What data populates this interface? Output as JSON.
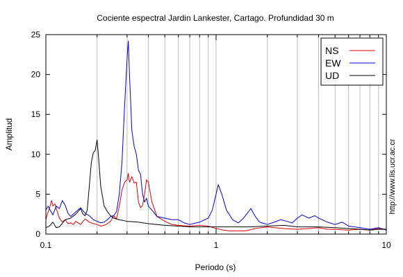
{
  "chart_data": {
    "type": "line",
    "title": "Cociente espectral Jardin Lankester, Cartago. Profundidad 30 m",
    "xlabel": "Periodo (s)",
    "ylabel": "Amplitud",
    "xscale": "log",
    "xlim": [
      0.1,
      10
    ],
    "ylim": [
      0,
      25
    ],
    "xticks": [
      "0.1",
      "1",
      "10"
    ],
    "yticks": [
      "0",
      "5",
      "10",
      "15",
      "20",
      "25"
    ],
    "grid": "vertical-log-minor",
    "legend_position": "top-right",
    "side_label": "http://www.lis.ucr.ac.cr",
    "series": [
      {
        "name": "NS",
        "color": "#e00000",
        "points": [
          [
            0.1,
            1.8
          ],
          [
            0.102,
            2.5
          ],
          [
            0.105,
            3.2
          ],
          [
            0.108,
            4.2
          ],
          [
            0.11,
            3.5
          ],
          [
            0.113,
            3.8
          ],
          [
            0.116,
            3.0
          ],
          [
            0.12,
            2.0
          ],
          [
            0.125,
            1.5
          ],
          [
            0.13,
            1.8
          ],
          [
            0.135,
            1.3
          ],
          [
            0.14,
            1.4
          ],
          [
            0.145,
            1.2
          ],
          [
            0.15,
            1.6
          ],
          [
            0.16,
            1.2
          ],
          [
            0.17,
            1.9
          ],
          [
            0.18,
            1.5
          ],
          [
            0.19,
            1.3
          ],
          [
            0.2,
            1.2
          ],
          [
            0.21,
            1.0
          ],
          [
            0.22,
            1.1
          ],
          [
            0.23,
            1.3
          ],
          [
            0.24,
            1.6
          ],
          [
            0.25,
            2.3
          ],
          [
            0.26,
            1.9
          ],
          [
            0.27,
            3.5
          ],
          [
            0.28,
            5.5
          ],
          [
            0.29,
            6.5
          ],
          [
            0.3,
            6.8
          ],
          [
            0.305,
            7.6
          ],
          [
            0.31,
            6.5
          ],
          [
            0.32,
            7.2
          ],
          [
            0.33,
            6.4
          ],
          [
            0.34,
            6.5
          ],
          [
            0.35,
            4.0
          ],
          [
            0.36,
            3.3
          ],
          [
            0.37,
            3.6
          ],
          [
            0.38,
            5.0
          ],
          [
            0.39,
            6.8
          ],
          [
            0.4,
            6.5
          ],
          [
            0.42,
            4.0
          ],
          [
            0.45,
            2.2
          ],
          [
            0.5,
            1.6
          ],
          [
            0.55,
            1.2
          ],
          [
            0.6,
            1.1
          ],
          [
            0.7,
            1.0
          ],
          [
            0.8,
            1.1
          ],
          [
            0.9,
            1.0
          ],
          [
            1.0,
            0.7
          ],
          [
            1.1,
            0.5
          ],
          [
            1.2,
            0.4
          ],
          [
            1.3,
            0.4
          ],
          [
            1.5,
            0.4
          ],
          [
            1.7,
            0.7
          ],
          [
            2.0,
            0.9
          ],
          [
            2.2,
            0.8
          ],
          [
            2.5,
            0.7
          ],
          [
            3.0,
            0.6
          ],
          [
            3.5,
            0.7
          ],
          [
            4.0,
            0.8
          ],
          [
            4.5,
            0.6
          ],
          [
            5.0,
            0.6
          ],
          [
            6.0,
            0.5
          ],
          [
            7.0,
            0.6
          ],
          [
            8.0,
            0.5
          ],
          [
            9.0,
            0.7
          ],
          [
            10.0,
            0.6
          ]
        ]
      },
      {
        "name": "EW",
        "color": "#0000d0",
        "points": [
          [
            0.1,
            3.0
          ],
          [
            0.103,
            3.5
          ],
          [
            0.106,
            3.0
          ],
          [
            0.11,
            2.4
          ],
          [
            0.115,
            3.5
          ],
          [
            0.12,
            3.2
          ],
          [
            0.125,
            4.2
          ],
          [
            0.13,
            3.6
          ],
          [
            0.135,
            2.6
          ],
          [
            0.14,
            2.2
          ],
          [
            0.15,
            2.8
          ],
          [
            0.16,
            3.3
          ],
          [
            0.17,
            2.6
          ],
          [
            0.18,
            2.3
          ],
          [
            0.19,
            1.8
          ],
          [
            0.2,
            1.6
          ],
          [
            0.21,
            1.4
          ],
          [
            0.22,
            1.5
          ],
          [
            0.23,
            1.8
          ],
          [
            0.24,
            2.2
          ],
          [
            0.25,
            2.3
          ],
          [
            0.26,
            2.8
          ],
          [
            0.27,
            5.0
          ],
          [
            0.28,
            9.0
          ],
          [
            0.29,
            16.0
          ],
          [
            0.3,
            22.0
          ],
          [
            0.305,
            24.2
          ],
          [
            0.31,
            20.0
          ],
          [
            0.32,
            13.0
          ],
          [
            0.33,
            11.0
          ],
          [
            0.34,
            10.0
          ],
          [
            0.35,
            8.0
          ],
          [
            0.36,
            7.5
          ],
          [
            0.37,
            5.0
          ],
          [
            0.38,
            4.0
          ],
          [
            0.39,
            4.5
          ],
          [
            0.4,
            3.5
          ],
          [
            0.42,
            3.0
          ],
          [
            0.45,
            2.2
          ],
          [
            0.5,
            2.0
          ],
          [
            0.55,
            1.8
          ],
          [
            0.6,
            1.8
          ],
          [
            0.65,
            1.4
          ],
          [
            0.7,
            1.2
          ],
          [
            0.8,
            1.5
          ],
          [
            0.9,
            2.0
          ],
          [
            0.95,
            3.0
          ],
          [
            1.0,
            5.0
          ],
          [
            1.03,
            6.2
          ],
          [
            1.08,
            5.0
          ],
          [
            1.15,
            3.0
          ],
          [
            1.25,
            1.8
          ],
          [
            1.35,
            1.4
          ],
          [
            1.45,
            2.0
          ],
          [
            1.55,
            2.8
          ],
          [
            1.6,
            3.2
          ],
          [
            1.7,
            2.2
          ],
          [
            1.8,
            1.5
          ],
          [
            2.0,
            1.2
          ],
          [
            2.2,
            1.5
          ],
          [
            2.4,
            1.8
          ],
          [
            2.6,
            1.6
          ],
          [
            2.8,
            1.4
          ],
          [
            3.0,
            2.0
          ],
          [
            3.2,
            2.4
          ],
          [
            3.5,
            2.0
          ],
          [
            3.8,
            2.3
          ],
          [
            4.0,
            2.0
          ],
          [
            4.5,
            1.5
          ],
          [
            5.0,
            1.2
          ],
          [
            5.5,
            1.5
          ],
          [
            6.0,
            1.0
          ],
          [
            7.0,
            0.8
          ],
          [
            8.0,
            0.6
          ],
          [
            9.0,
            0.8
          ],
          [
            10.0,
            0.5
          ]
        ]
      },
      {
        "name": "UD",
        "color": "#000000",
        "points": [
          [
            0.1,
            0.8
          ],
          [
            0.105,
            1.0
          ],
          [
            0.11,
            1.5
          ],
          [
            0.115,
            0.8
          ],
          [
            0.12,
            0.9
          ],
          [
            0.13,
            1.8
          ],
          [
            0.14,
            2.0
          ],
          [
            0.15,
            2.5
          ],
          [
            0.16,
            3.2
          ],
          [
            0.165,
            2.5
          ],
          [
            0.17,
            2.3
          ],
          [
            0.175,
            3.0
          ],
          [
            0.18,
            6.0
          ],
          [
            0.185,
            9.0
          ],
          [
            0.19,
            10.2
          ],
          [
            0.195,
            10.5
          ],
          [
            0.2,
            11.8
          ],
          [
            0.205,
            9.0
          ],
          [
            0.21,
            6.0
          ],
          [
            0.22,
            3.5
          ],
          [
            0.23,
            2.8
          ],
          [
            0.24,
            2.3
          ],
          [
            0.25,
            2.0
          ],
          [
            0.27,
            1.8
          ],
          [
            0.3,
            1.6
          ],
          [
            0.35,
            1.5
          ],
          [
            0.4,
            1.3
          ],
          [
            0.5,
            1.1
          ],
          [
            0.6,
            1.0
          ],
          [
            0.7,
            0.9
          ],
          [
            0.8,
            0.9
          ],
          [
            1.0,
            0.9
          ],
          [
            1.3,
            0.9
          ],
          [
            1.6,
            0.9
          ],
          [
            2.0,
            1.0
          ],
          [
            2.5,
            1.1
          ],
          [
            3.0,
            0.9
          ],
          [
            4.0,
            0.9
          ],
          [
            5.0,
            0.8
          ],
          [
            6.0,
            0.7
          ],
          [
            7.0,
            0.6
          ],
          [
            8.0,
            0.5
          ],
          [
            9.0,
            0.6
          ],
          [
            10.0,
            0.6
          ]
        ]
      }
    ]
  }
}
